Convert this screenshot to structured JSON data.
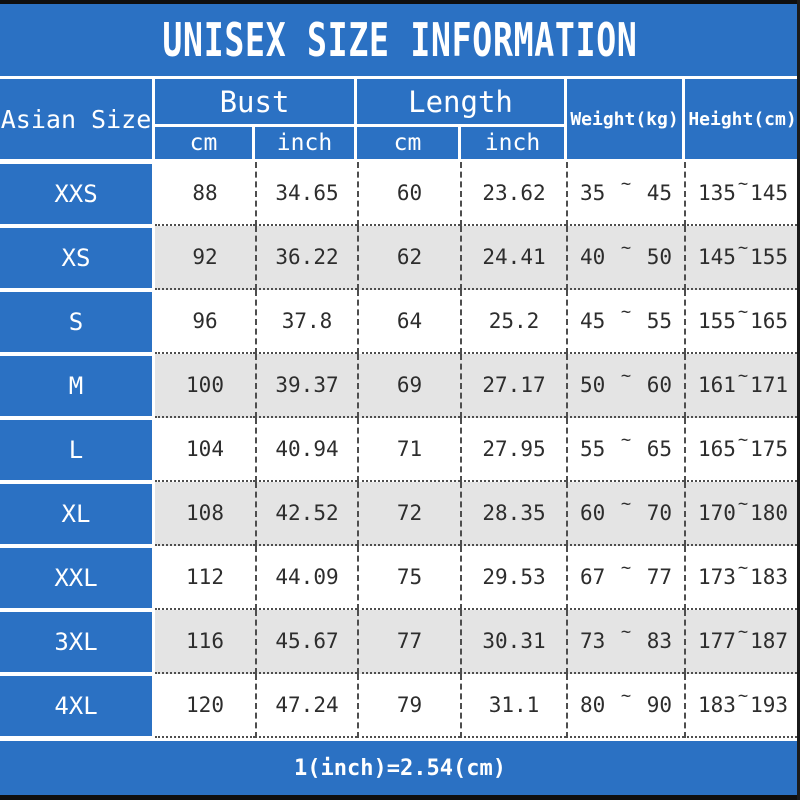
{
  "title": "UNISEX SIZE INFORMATION",
  "footer_note": "1(inch)=2.54(cm)",
  "tilde": "~",
  "colors": {
    "accent_blue": "#2b71c3",
    "edge_black": "#0f0f0f",
    "row_alt_gray": "#e4e4e4",
    "text_dark": "#2d2d2d",
    "text_white": "#ffffff"
  },
  "header": {
    "asian_size": "Asian Size",
    "bust": "Bust",
    "length": "Length",
    "cm": "cm",
    "inch": "inch",
    "weight": "Weight(kg)",
    "height": "Height(cm)"
  },
  "chart_data": {
    "type": "table",
    "title": "UNISEX SIZE INFORMATION",
    "columns": [
      "Asian Size",
      "Bust cm",
      "Bust inch",
      "Length cm",
      "Length inch",
      "Weight(kg)",
      "Height(cm)"
    ],
    "rows": [
      {
        "size": "XXS",
        "bust_cm": "88",
        "bust_inch": "34.65",
        "length_cm": "60",
        "length_inch": "23.62",
        "weight_min": "35",
        "weight_max": "45",
        "height_min": "135",
        "height_max": "145"
      },
      {
        "size": "XS",
        "bust_cm": "92",
        "bust_inch": "36.22",
        "length_cm": "62",
        "length_inch": "24.41",
        "weight_min": "40",
        "weight_max": "50",
        "height_min": "145",
        "height_max": "155"
      },
      {
        "size": "S",
        "bust_cm": "96",
        "bust_inch": "37.8",
        "length_cm": "64",
        "length_inch": "25.2",
        "weight_min": "45",
        "weight_max": "55",
        "height_min": "155",
        "height_max": "165"
      },
      {
        "size": "M",
        "bust_cm": "100",
        "bust_inch": "39.37",
        "length_cm": "69",
        "length_inch": "27.17",
        "weight_min": "50",
        "weight_max": "60",
        "height_min": "161",
        "height_max": "171"
      },
      {
        "size": "L",
        "bust_cm": "104",
        "bust_inch": "40.94",
        "length_cm": "71",
        "length_inch": "27.95",
        "weight_min": "55",
        "weight_max": "65",
        "height_min": "165",
        "height_max": "175"
      },
      {
        "size": "XL",
        "bust_cm": "108",
        "bust_inch": "42.52",
        "length_cm": "72",
        "length_inch": "28.35",
        "weight_min": "60",
        "weight_max": "70",
        "height_min": "170",
        "height_max": "180"
      },
      {
        "size": "XXL",
        "bust_cm": "112",
        "bust_inch": "44.09",
        "length_cm": "75",
        "length_inch": "29.53",
        "weight_min": "67",
        "weight_max": "77",
        "height_min": "173",
        "height_max": "183"
      },
      {
        "size": "3XL",
        "bust_cm": "116",
        "bust_inch": "45.67",
        "length_cm": "77",
        "length_inch": "30.31",
        "weight_min": "73",
        "weight_max": "83",
        "height_min": "177",
        "height_max": "187"
      },
      {
        "size": "4XL",
        "bust_cm": "120",
        "bust_inch": "47.24",
        "length_cm": "79",
        "length_inch": "31.1",
        "weight_min": "80",
        "weight_max": "90",
        "height_min": "183",
        "height_max": "193"
      }
    ]
  }
}
